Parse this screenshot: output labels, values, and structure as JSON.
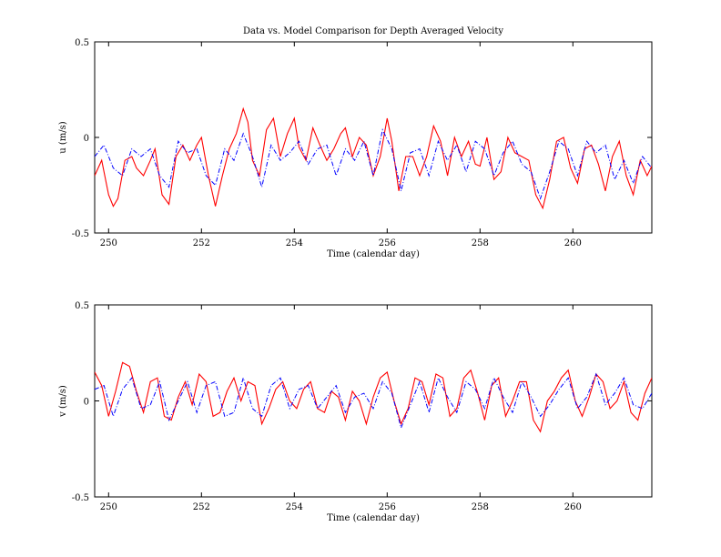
{
  "chart_data": [
    {
      "type": "line",
      "title": "Data vs. Model Comparison for Depth Averaged Velocity",
      "xlabel": "Time (calendar day)",
      "ylabel": "u (m/s)",
      "xlim": [
        249.7,
        261.7
      ],
      "ylim": [
        -0.5,
        0.5
      ],
      "xticks": [
        250,
        252,
        254,
        256,
        258,
        260
      ],
      "yticks": [
        -0.5,
        0,
        0.5
      ],
      "grid": false,
      "series": [
        {
          "style": "solid",
          "color": "#ff0000",
          "x": [
            249.7,
            249.85,
            250.0,
            250.1,
            250.2,
            250.35,
            250.5,
            250.6,
            250.75,
            250.9,
            251.0,
            251.15,
            251.3,
            251.45,
            251.6,
            251.75,
            251.9,
            252.0,
            252.15,
            252.3,
            252.45,
            252.6,
            252.75,
            252.9,
            253.0,
            253.1,
            253.25,
            253.4,
            253.55,
            253.7,
            253.85,
            254.0,
            254.1,
            254.25,
            254.4,
            254.55,
            254.7,
            254.85,
            255.0,
            255.1,
            255.25,
            255.4,
            255.55,
            255.7,
            255.85,
            256.0,
            256.1,
            256.25,
            256.4,
            256.55,
            256.7,
            256.85,
            257.0,
            257.15,
            257.3,
            257.45,
            257.6,
            257.75,
            257.9,
            258.0,
            258.15,
            258.3,
            258.45,
            258.6,
            258.75,
            258.9,
            259.05,
            259.2,
            259.35,
            259.5,
            259.65,
            259.8,
            259.95,
            260.1,
            260.25,
            260.4,
            260.55,
            260.7,
            260.85,
            261.0,
            261.15,
            261.3,
            261.45,
            261.6,
            261.7
          ],
          "y": [
            -0.2,
            -0.12,
            -0.3,
            -0.36,
            -0.32,
            -0.12,
            -0.1,
            -0.16,
            -0.2,
            -0.12,
            -0.06,
            -0.3,
            -0.35,
            -0.1,
            -0.04,
            -0.12,
            -0.04,
            0.0,
            -0.2,
            -0.36,
            -0.2,
            -0.06,
            0.02,
            0.15,
            0.08,
            -0.12,
            -0.2,
            0.04,
            0.1,
            -0.1,
            0.02,
            0.1,
            -0.05,
            -0.12,
            0.05,
            -0.04,
            -0.12,
            -0.06,
            0.02,
            0.05,
            -0.1,
            0.0,
            -0.04,
            -0.2,
            -0.1,
            0.1,
            -0.02,
            -0.28,
            -0.1,
            -0.1,
            -0.2,
            -0.1,
            0.06,
            -0.02,
            -0.2,
            0.0,
            -0.1,
            -0.02,
            -0.14,
            -0.15,
            0.0,
            -0.22,
            -0.18,
            0.0,
            -0.08,
            -0.1,
            -0.12,
            -0.3,
            -0.37,
            -0.22,
            -0.02,
            0.0,
            -0.16,
            -0.24,
            -0.06,
            -0.04,
            -0.14,
            -0.28,
            -0.1,
            -0.02,
            -0.2,
            -0.3,
            -0.12,
            -0.2,
            -0.15
          ]
        },
        {
          "style": "dashdot",
          "color": "#0000ff",
          "x": [
            249.7,
            249.9,
            250.1,
            250.3,
            250.5,
            250.7,
            250.9,
            251.1,
            251.3,
            251.5,
            251.7,
            251.9,
            252.1,
            252.3,
            252.5,
            252.7,
            252.9,
            253.1,
            253.3,
            253.5,
            253.7,
            253.9,
            254.1,
            254.3,
            254.5,
            254.7,
            254.9,
            255.1,
            255.3,
            255.5,
            255.7,
            255.9,
            256.1,
            256.3,
            256.5,
            256.7,
            256.9,
            257.1,
            257.3,
            257.5,
            257.7,
            257.9,
            258.1,
            258.3,
            258.5,
            258.7,
            258.9,
            259.1,
            259.3,
            259.5,
            259.7,
            259.9,
            260.1,
            260.3,
            260.5,
            260.7,
            260.9,
            261.1,
            261.3,
            261.5,
            261.7
          ],
          "y": [
            -0.1,
            -0.04,
            -0.16,
            -0.2,
            -0.06,
            -0.1,
            -0.06,
            -0.2,
            -0.26,
            -0.02,
            -0.08,
            -0.06,
            -0.2,
            -0.25,
            -0.06,
            -0.12,
            0.02,
            -0.1,
            -0.26,
            -0.04,
            -0.12,
            -0.08,
            -0.02,
            -0.14,
            -0.06,
            -0.04,
            -0.2,
            -0.06,
            -0.12,
            -0.02,
            -0.2,
            0.04,
            -0.06,
            -0.28,
            -0.08,
            -0.06,
            -0.2,
            -0.02,
            -0.12,
            -0.04,
            -0.18,
            -0.02,
            -0.06,
            -0.2,
            -0.08,
            -0.02,
            -0.14,
            -0.18,
            -0.32,
            -0.18,
            -0.02,
            -0.06,
            -0.2,
            -0.02,
            -0.08,
            -0.04,
            -0.22,
            -0.12,
            -0.24,
            -0.1,
            -0.16
          ]
        }
      ]
    },
    {
      "type": "line",
      "title": "",
      "xlabel": "Time (calendar day)",
      "ylabel": "v (m/s)",
      "xlim": [
        249.7,
        261.7
      ],
      "ylim": [
        -0.5,
        0.5
      ],
      "xticks": [
        250,
        252,
        254,
        256,
        258,
        260
      ],
      "yticks": [
        -0.5,
        0,
        0.5
      ],
      "grid": false,
      "series": [
        {
          "style": "solid",
          "color": "#ff0000",
          "x": [
            249.7,
            249.85,
            250.0,
            250.15,
            250.3,
            250.45,
            250.6,
            250.75,
            250.9,
            251.05,
            251.2,
            251.35,
            251.5,
            251.65,
            251.8,
            251.95,
            252.1,
            252.25,
            252.4,
            252.55,
            252.7,
            252.85,
            253.0,
            253.15,
            253.3,
            253.45,
            253.6,
            253.75,
            253.9,
            254.05,
            254.2,
            254.35,
            254.5,
            254.65,
            254.8,
            254.95,
            255.1,
            255.25,
            255.4,
            255.55,
            255.7,
            255.85,
            256.0,
            256.15,
            256.3,
            256.45,
            256.6,
            256.75,
            256.9,
            257.05,
            257.2,
            257.35,
            257.5,
            257.65,
            257.8,
            257.95,
            258.1,
            258.25,
            258.4,
            258.55,
            258.7,
            258.85,
            259.0,
            259.15,
            259.3,
            259.45,
            259.6,
            259.75,
            259.9,
            260.05,
            260.2,
            260.35,
            260.5,
            260.65,
            260.8,
            260.95,
            261.1,
            261.25,
            261.4,
            261.55,
            261.7
          ],
          "y": [
            0.15,
            0.08,
            -0.08,
            0.05,
            0.2,
            0.18,
            0.05,
            -0.06,
            0.1,
            0.12,
            -0.08,
            -0.1,
            0.02,
            0.1,
            -0.02,
            0.14,
            0.1,
            -0.08,
            -0.06,
            0.05,
            0.12,
            0.0,
            0.1,
            0.08,
            -0.12,
            -0.04,
            0.06,
            0.1,
            0.0,
            -0.04,
            0.06,
            0.1,
            -0.04,
            -0.06,
            0.05,
            0.02,
            -0.1,
            0.05,
            0.0,
            -0.12,
            0.02,
            0.12,
            0.15,
            0.0,
            -0.12,
            -0.04,
            0.12,
            0.1,
            -0.02,
            0.14,
            0.12,
            -0.08,
            -0.04,
            0.12,
            0.16,
            0.04,
            -0.1,
            0.08,
            0.12,
            -0.08,
            0.0,
            0.1,
            0.1,
            -0.1,
            -0.16,
            0.0,
            0.05,
            0.12,
            0.16,
            0.0,
            -0.08,
            0.02,
            0.14,
            0.1,
            -0.04,
            0.0,
            0.1,
            -0.06,
            -0.1,
            0.04,
            0.12
          ]
        },
        {
          "style": "dashdot",
          "color": "#0000ff",
          "x": [
            249.7,
            249.9,
            250.1,
            250.3,
            250.5,
            250.7,
            250.9,
            251.1,
            251.3,
            251.5,
            251.7,
            251.9,
            252.1,
            252.3,
            252.5,
            252.7,
            252.9,
            253.1,
            253.3,
            253.5,
            253.7,
            253.9,
            254.1,
            254.3,
            254.5,
            254.7,
            254.9,
            255.1,
            255.3,
            255.5,
            255.7,
            255.9,
            256.1,
            256.3,
            256.5,
            256.7,
            256.9,
            257.1,
            257.3,
            257.5,
            257.7,
            257.9,
            258.1,
            258.3,
            258.5,
            258.7,
            258.9,
            259.1,
            259.3,
            259.5,
            259.7,
            259.9,
            260.1,
            260.3,
            260.5,
            260.7,
            260.9,
            261.1,
            261.3,
            261.5,
            261.7
          ],
          "y": [
            0.06,
            0.08,
            -0.08,
            0.06,
            0.12,
            -0.04,
            -0.02,
            0.1,
            -0.1,
            0.0,
            0.1,
            -0.06,
            0.08,
            0.1,
            -0.08,
            -0.06,
            0.12,
            -0.04,
            -0.08,
            0.08,
            0.12,
            -0.04,
            0.06,
            0.08,
            -0.04,
            0.02,
            0.08,
            -0.06,
            0.02,
            0.04,
            -0.04,
            0.1,
            0.04,
            -0.14,
            -0.02,
            0.1,
            -0.06,
            0.12,
            0.02,
            -0.06,
            0.1,
            0.06,
            -0.04,
            0.12,
            0.02,
            -0.06,
            0.1,
            0.02,
            -0.08,
            -0.02,
            0.06,
            0.12,
            -0.04,
            0.02,
            0.14,
            -0.02,
            0.04,
            0.12,
            -0.02,
            -0.04,
            0.04
          ]
        }
      ]
    }
  ]
}
